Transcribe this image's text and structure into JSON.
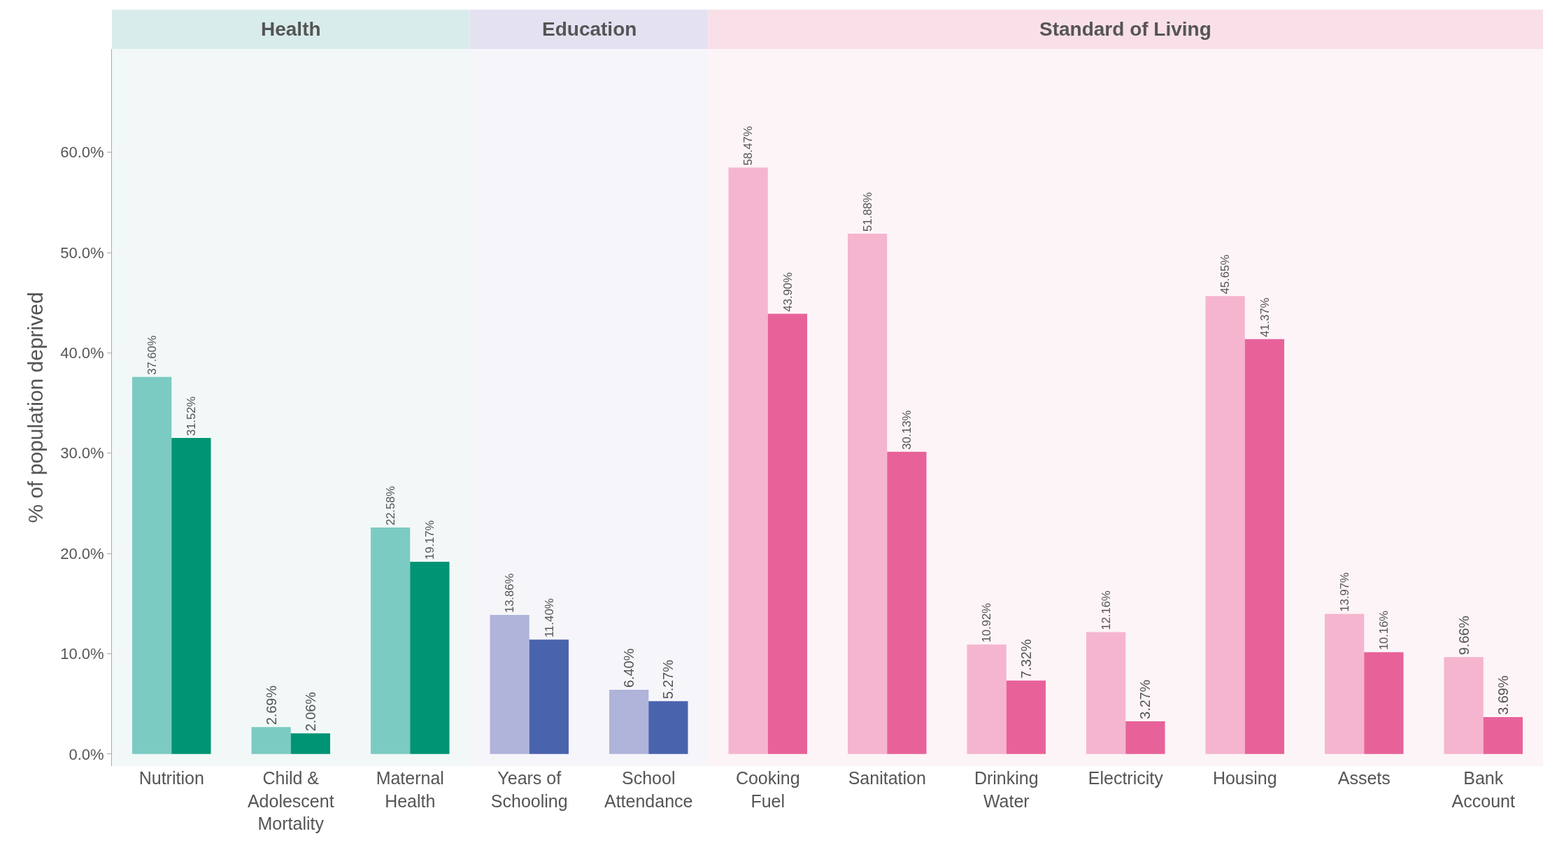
{
  "chart_data": {
    "type": "bar",
    "ylabel": "% of population deprived",
    "categories": [
      "Nutrition",
      "Child & Adolescent Mortality",
      "Maternal Health",
      "Years of Schooling",
      "School Attendance",
      "Cooking Fuel",
      "Sanitation",
      "Drinking Water",
      "Electricity",
      "Housing",
      "Assets",
      "Bank Account"
    ],
    "series": [
      {
        "values": [
          37.6,
          2.69,
          22.58,
          13.86,
          6.4,
          58.47,
          51.88,
          10.92,
          12.16,
          45.65,
          13.97,
          9.66
        ],
        "value_labels": [
          "37.60%",
          "2.69%",
          "22.58%",
          "13.86%",
          "6.40%",
          "58.47%",
          "51.88%",
          "10.92%",
          "12.16%",
          "45.65%",
          "13.97%",
          "9.66%"
        ],
        "colors": [
          "#7ccbc3",
          "#7ccbc3",
          "#7ccbc3",
          "#b0b3da",
          "#b0b3da",
          "#f5b5cf",
          "#f5b5cf",
          "#f5b5cf",
          "#f5b5cf",
          "#f5b5cf",
          "#f5b5cf",
          "#f5b5cf"
        ]
      },
      {
        "values": [
          31.52,
          2.06,
          19.17,
          11.4,
          5.27,
          43.9,
          30.13,
          7.32,
          3.27,
          41.37,
          10.16,
          3.69
        ],
        "value_labels": [
          "31.52%",
          "2.06%",
          "19.17%",
          "11.40%",
          "5.27%",
          "43.90%",
          "30.13%",
          "7.32%",
          "3.27%",
          "41.37%",
          "10.16%",
          "3.69%"
        ],
        "colors": [
          "#009474",
          "#009474",
          "#009474",
          "#4a63ad",
          "#4a63ad",
          "#e8629a",
          "#e8629a",
          "#e8629a",
          "#e8629a",
          "#e8629a",
          "#e8629a",
          "#e8629a"
        ]
      }
    ],
    "ylim": [
      -1.2,
      70.3
    ],
    "yticks": [
      {
        "value": 0,
        "label": "0.0%"
      },
      {
        "value": 10,
        "label": "10.0%"
      },
      {
        "value": 20,
        "label": "20.0%"
      },
      {
        "value": 30,
        "label": "30.0%"
      },
      {
        "value": 40,
        "label": "40.0%"
      },
      {
        "value": 50,
        "label": "50.0%"
      },
      {
        "value": 60,
        "label": "60.0%"
      }
    ],
    "bands": [
      {
        "axis": "x",
        "from": "Nutrition",
        "to": "Maternal Health",
        "label": "Health",
        "color": "#d9ecec"
      },
      {
        "axis": "x",
        "from": "Years of Schooling",
        "to": "School Attendance",
        "label": "Education",
        "color": "#e4e1f1"
      },
      {
        "axis": "x",
        "from": "Cooking Fuel",
        "to": "Bank Account",
        "label": "Standard of Living",
        "color": "#f8dfe8"
      }
    ],
    "grid": false
  }
}
